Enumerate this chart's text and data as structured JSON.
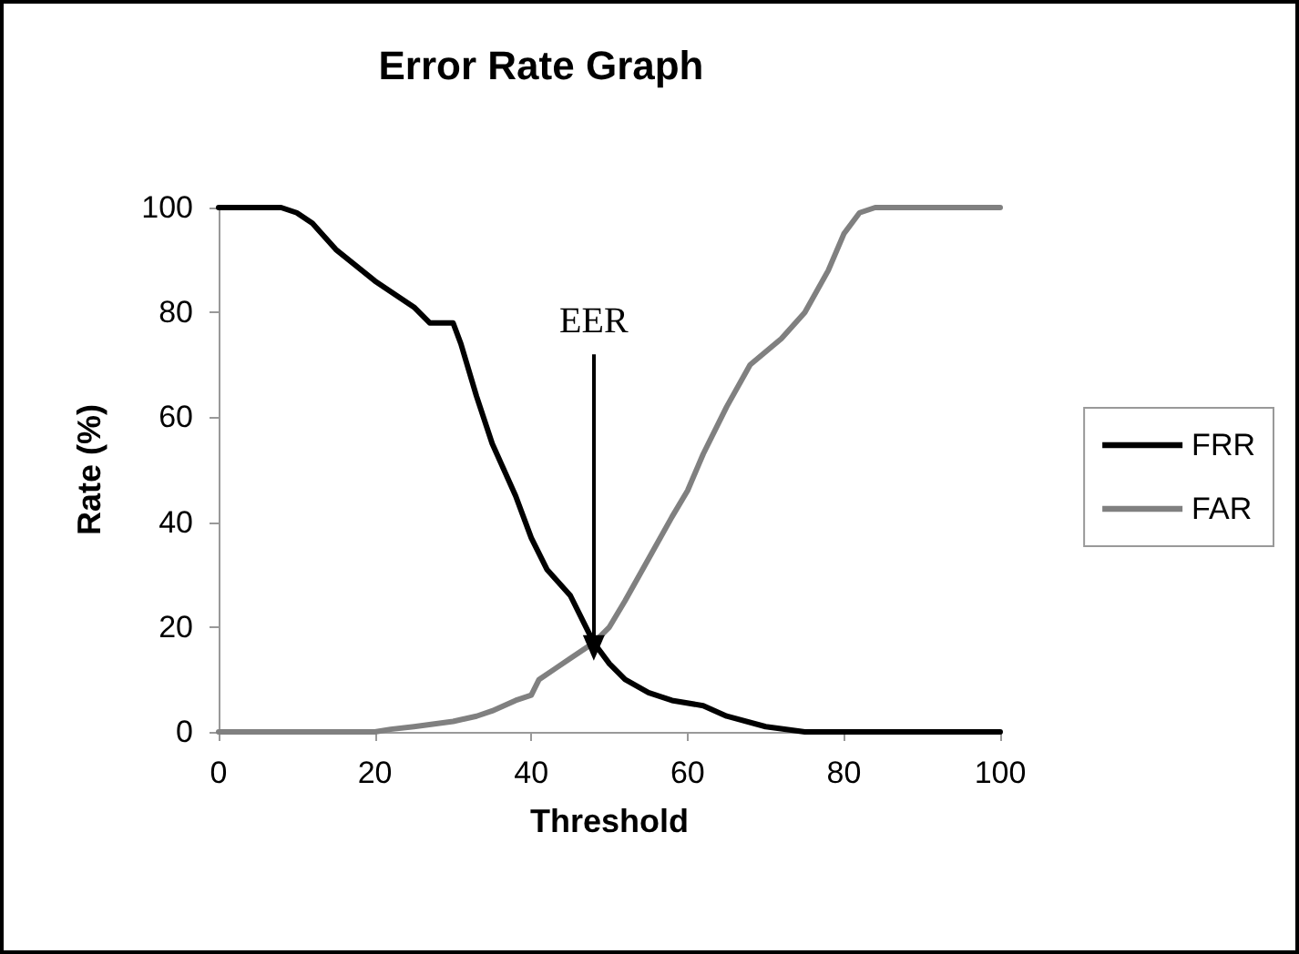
{
  "chart_data": {
    "type": "line",
    "title": "Error Rate Graph",
    "xlabel": "Threshold",
    "ylabel": "Rate (%)",
    "xlim": [
      0,
      100
    ],
    "xticks": [
      0,
      20,
      40,
      60,
      80,
      100
    ],
    "ylim": [
      0,
      100
    ],
    "yticks": [
      0,
      20,
      40,
      60,
      80,
      100
    ],
    "grid": false,
    "legend": "right",
    "marker": "none",
    "line_style": "solid",
    "annotations": [
      {
        "text": "EER",
        "x": 48,
        "y": 16
      }
    ],
    "series": [
      {
        "name": "FRR",
        "color": "#000000",
        "x": [
          0,
          5,
          8,
          10,
          12,
          15,
          20,
          25,
          27,
          30,
          31,
          33,
          35,
          38,
          40,
          42,
          45,
          47,
          48,
          50,
          52,
          55,
          58,
          62,
          65,
          70,
          75,
          100
        ],
        "values": [
          100,
          100,
          100,
          99,
          97,
          92,
          86,
          81,
          78,
          78,
          74,
          64,
          55,
          45,
          37,
          31,
          26,
          20,
          17,
          13,
          10,
          7.5,
          6,
          5,
          3,
          1,
          0,
          0
        ]
      },
      {
        "name": "FAR",
        "color": "#808080",
        "x": [
          0,
          20,
          22,
          25,
          30,
          33,
          35,
          38,
          40,
          41,
          43,
          45,
          48,
          50,
          52,
          55,
          58,
          60,
          62,
          65,
          68,
          72,
          75,
          78,
          80,
          82,
          84,
          100
        ],
        "values": [
          0,
          0,
          0.5,
          1,
          2,
          3,
          4,
          6,
          7,
          10,
          12,
          14,
          17,
          20,
          25,
          33,
          41,
          46,
          53,
          62,
          70,
          75,
          80,
          88,
          95,
          99,
          100,
          100
        ]
      }
    ]
  }
}
